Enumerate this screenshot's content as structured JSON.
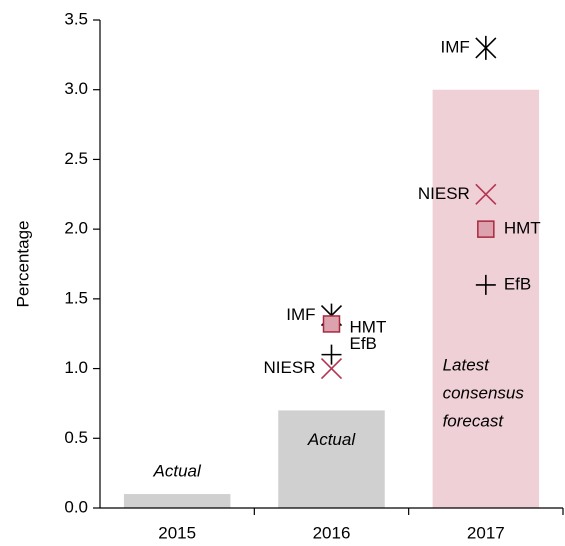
{
  "chart_data": {
    "type": "bar",
    "y_label": "Percentage",
    "categories": [
      "2015",
      "2016",
      "2017"
    ],
    "values": [
      0.1,
      0.7,
      3.0
    ],
    "colors": [
      "#d0d0d0",
      "#d0d0d0",
      "#efd0d6"
    ],
    "bar_labels": [
      [
        "Actual"
      ],
      [
        "Actual"
      ],
      [
        "Latest",
        "consensus",
        "forecast"
      ]
    ],
    "ylim": [
      0,
      3.5
    ],
    "yticks": [
      {
        "value": 0,
        "label": "0.0"
      },
      0.5,
      {
        "value": 1,
        "label": "1.0"
      },
      1.5,
      {
        "value": 2,
        "label": "2.0"
      },
      2.5,
      {
        "value": 3,
        "label": "3.0"
      },
      3.5
    ],
    "series": [
      {
        "name": "IMF",
        "marker": "asterisk",
        "color": "#000000",
        "label_side": "left",
        "values": [
          null,
          1.38,
          3.3
        ]
      },
      {
        "name": "HMT",
        "marker": "square",
        "color": "#a8283f",
        "label_side": "right",
        "values": [
          null,
          1.32,
          2.0
        ]
      },
      {
        "name": "EfB",
        "marker": "plus",
        "color": "#000000",
        "label_side": "right",
        "values": [
          null,
          1.1,
          1.6
        ]
      },
      {
        "name": "NIESR",
        "marker": "cross",
        "color": "#b5344f",
        "label_side": "left",
        "values": [
          null,
          1.0,
          2.25
        ]
      }
    ]
  }
}
